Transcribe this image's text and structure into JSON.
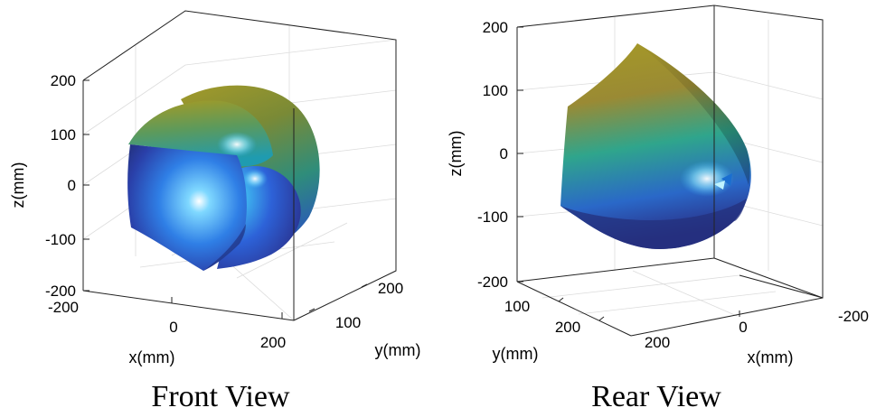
{
  "chart_data": [
    {
      "type": "surface3d",
      "title": "Front View",
      "xlabel": "x(mm)",
      "ylabel": "y(mm)",
      "zlabel": "z(mm)",
      "xticks": [
        "-200",
        "0",
        "200"
      ],
      "yticks": [
        "100",
        "200"
      ],
      "zticks": [
        "200",
        "100",
        "0",
        "-100",
        "-200"
      ],
      "xlim": [
        -200,
        200
      ],
      "ylim": [
        0,
        250
      ],
      "zlim": [
        -200,
        200
      ],
      "grid": true,
      "colormap": "parula"
    },
    {
      "type": "surface3d",
      "title": "Rear View",
      "xlabel": "x(mm)",
      "ylabel": "y(mm)",
      "zlabel": "z(mm)",
      "xticks": [
        "-200",
        "0"
      ],
      "yticks": [
        "100",
        "200"
      ],
      "zticks": [
        "200",
        "100",
        "0",
        "-100",
        "-200"
      ],
      "xlim": [
        -200,
        200
      ],
      "ylim": [
        0,
        250
      ],
      "zlim": [
        -200,
        200
      ],
      "grid": true,
      "colormap": "parula"
    }
  ]
}
